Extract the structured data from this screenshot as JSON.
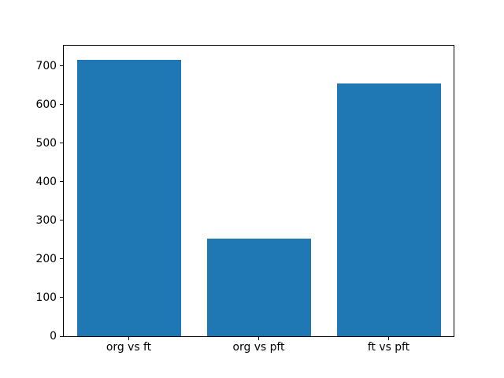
{
  "chart_data": {
    "type": "bar",
    "categories": [
      "org vs ft",
      "org vs pft",
      "ft vs pft"
    ],
    "values": [
      717,
      253,
      656
    ],
    "yticks": [
      0,
      100,
      200,
      300,
      400,
      500,
      600,
      700
    ],
    "ylim": [
      0,
      753
    ],
    "bar_color": "#1f77b4",
    "bar_width_fraction": 0.8,
    "grid": false,
    "legend": "none",
    "title": ""
  },
  "colors": {
    "bar": "#1f77b4",
    "spine": "#000000",
    "background": "#ffffff"
  }
}
